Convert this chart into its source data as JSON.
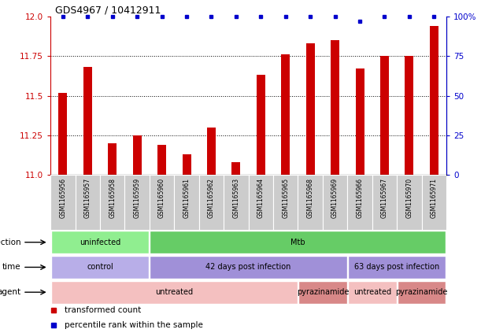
{
  "title": "GDS4967 / 10412911",
  "samples": [
    "GSM1165956",
    "GSM1165957",
    "GSM1165958",
    "GSM1165959",
    "GSM1165960",
    "GSM1165961",
    "GSM1165962",
    "GSM1165963",
    "GSM1165964",
    "GSM1165965",
    "GSM1165968",
    "GSM1165969",
    "GSM1165966",
    "GSM1165967",
    "GSM1165970",
    "GSM1165971"
  ],
  "bar_values": [
    11.52,
    11.68,
    11.2,
    11.25,
    11.19,
    11.13,
    11.3,
    11.08,
    11.63,
    11.76,
    11.83,
    11.85,
    11.67,
    11.75,
    11.75,
    11.94
  ],
  "percentile_values": [
    12.0,
    12.0,
    12.0,
    12.0,
    12.0,
    12.0,
    12.0,
    12.0,
    12.0,
    12.0,
    12.0,
    12.0,
    11.97,
    12.0,
    12.0,
    12.0
  ],
  "ylim": [
    11.0,
    12.0
  ],
  "yticks_left": [
    11.0,
    11.25,
    11.5,
    11.75,
    12.0
  ],
  "yticks_right": [
    0,
    25,
    50,
    75,
    100
  ],
  "bar_color": "#cc0000",
  "percentile_color": "#0000cc",
  "annotation_rows": [
    {
      "label": "infection",
      "segments": [
        {
          "text": "uninfected",
          "start": 0,
          "end": 4,
          "color": "#90ee90"
        },
        {
          "text": "Mtb",
          "start": 4,
          "end": 16,
          "color": "#66cc66"
        }
      ]
    },
    {
      "label": "time",
      "segments": [
        {
          "text": "control",
          "start": 0,
          "end": 4,
          "color": "#b8aee8"
        },
        {
          "text": "42 days post infection",
          "start": 4,
          "end": 12,
          "color": "#a090d8"
        },
        {
          "text": "63 days post infection",
          "start": 12,
          "end": 16,
          "color": "#a090d8"
        }
      ]
    },
    {
      "label": "agent",
      "segments": [
        {
          "text": "untreated",
          "start": 0,
          "end": 10,
          "color": "#f4c0c0"
        },
        {
          "text": "pyrazinamide",
          "start": 10,
          "end": 12,
          "color": "#d88888"
        },
        {
          "text": "untreated",
          "start": 12,
          "end": 14,
          "color": "#f4c0c0"
        },
        {
          "text": "pyrazinamide",
          "start": 14,
          "end": 16,
          "color": "#d88888"
        }
      ]
    }
  ],
  "legend_items": [
    {
      "color": "#cc0000",
      "label": "transformed count"
    },
    {
      "color": "#0000cc",
      "label": "percentile rank within the sample"
    }
  ]
}
